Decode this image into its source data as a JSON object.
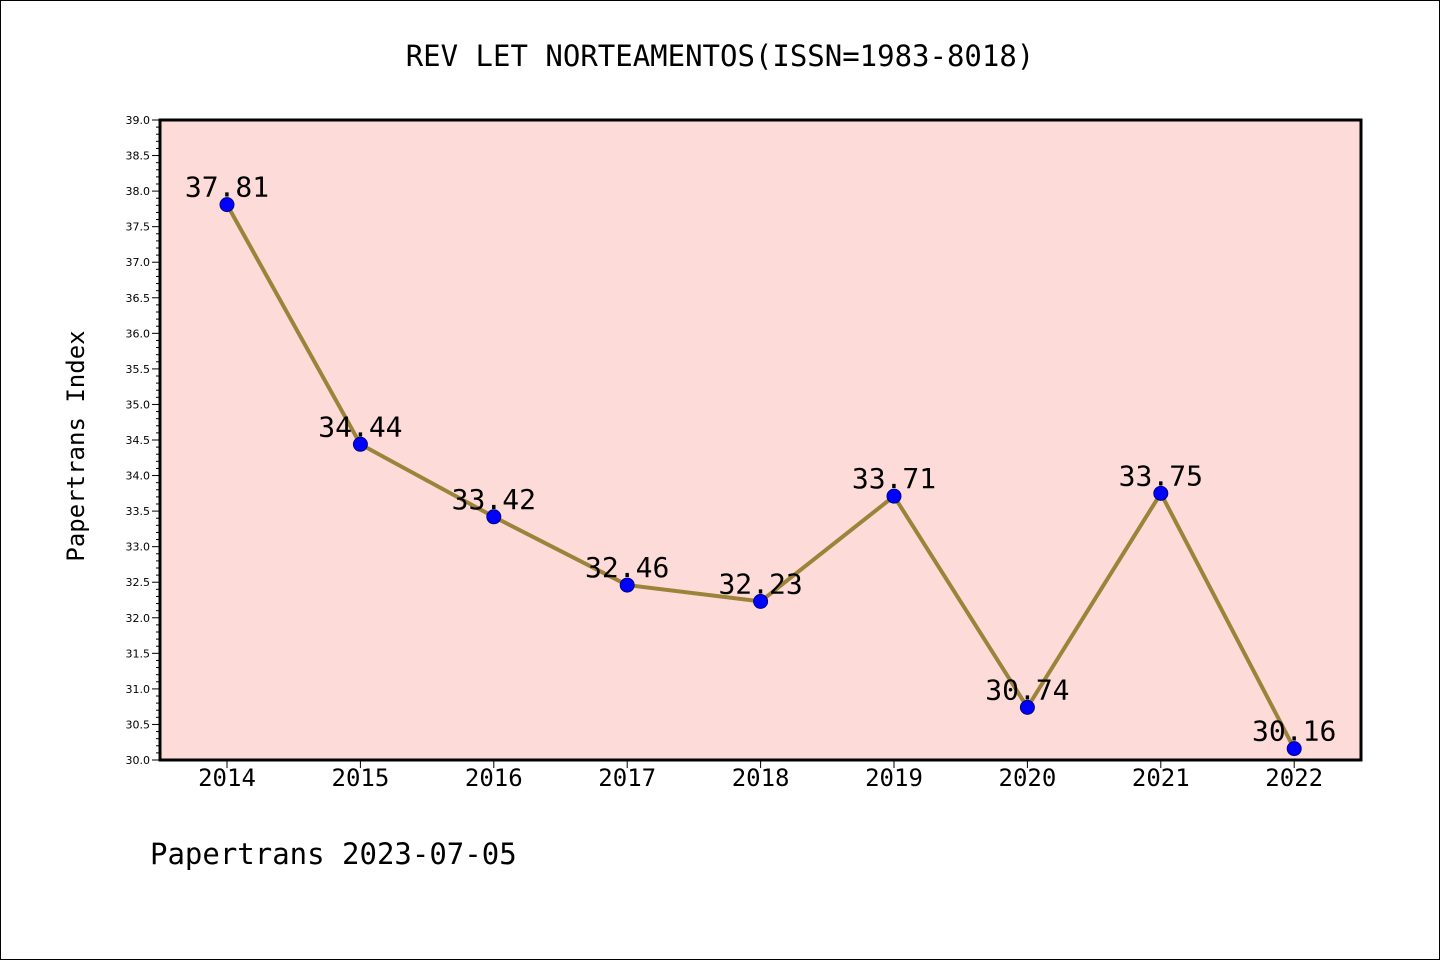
{
  "chart_data": {
    "type": "line",
    "title": "REV LET NORTEAMENTOS(ISSN=1983-8018)",
    "xlabel": "",
    "ylabel": "Papertrans Index",
    "categories": [
      "2014",
      "2015",
      "2016",
      "2017",
      "2018",
      "2019",
      "2020",
      "2021",
      "2022"
    ],
    "values": [
      37.81,
      34.44,
      33.42,
      32.46,
      32.23,
      33.71,
      30.74,
      33.75,
      30.16
    ],
    "data_labels": [
      "37.81",
      "34.44",
      "33.42",
      "32.46",
      "32.23",
      "33.71",
      "30.74",
      "33.75",
      "30.16"
    ],
    "ylim": [
      30.0,
      39.0
    ],
    "yticks": [
      "30.0",
      "30.5",
      "31.0",
      "31.5",
      "32.0",
      "32.5",
      "33.0",
      "33.5",
      "34.0",
      "34.5",
      "35.0",
      "35.5",
      "36.0",
      "36.5",
      "37.0",
      "37.5",
      "38.0",
      "38.5",
      "39.0"
    ],
    "grid": false,
    "legend": "none",
    "colors": {
      "plot_background": "#fddbd8",
      "line": "#9b8439",
      "marker": "#0000ff",
      "marker_edge": "#000080"
    }
  },
  "footer": "Papertrans 2023-07-05"
}
